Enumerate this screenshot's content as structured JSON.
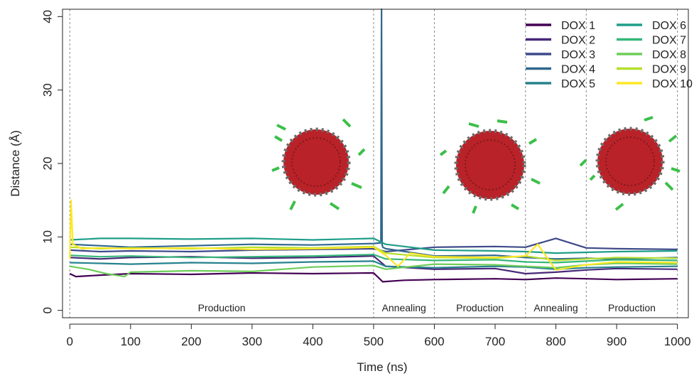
{
  "chart_data": {
    "type": "line",
    "xlabel": "Time (ns)",
    "ylabel": "Distance (Å)",
    "xlim": [
      -12,
      1018
    ],
    "ylim": [
      -1,
      41
    ],
    "xticks": [
      0,
      100,
      200,
      300,
      400,
      500,
      600,
      700,
      800,
      900,
      1000
    ],
    "yticks": [
      0,
      10,
      20,
      30,
      40
    ],
    "vlines": [
      0,
      500,
      600,
      750,
      850,
      1000
    ],
    "regions": [
      {
        "label": "Production",
        "x": [
          0,
          500
        ]
      },
      {
        "label": "Annealing",
        "x": [
          500,
          600
        ]
      },
      {
        "label": "Production",
        "x": [
          600,
          750
        ]
      },
      {
        "label": "Annealing",
        "x": [
          750,
          850
        ]
      },
      {
        "label": "Production",
        "x": [
          850,
          1000
        ]
      }
    ],
    "legend_position": "top-right",
    "series": [
      {
        "name": "DOX 1",
        "color": "#440154",
        "x": [
          0,
          10,
          50,
          100,
          200,
          300,
          400,
          500,
          515,
          550,
          600,
          700,
          750,
          800,
          850,
          900,
          1000
        ],
        "values": [
          5.0,
          4.6,
          4.8,
          5.0,
          4.9,
          5.1,
          5.0,
          5.1,
          3.9,
          4.1,
          4.2,
          4.3,
          4.2,
          4.4,
          4.3,
          4.2,
          4.3
        ]
      },
      {
        "name": "DOX 2",
        "color": "#482878",
        "x": [
          0,
          50,
          100,
          200,
          300,
          400,
          500,
          520,
          600,
          700,
          750,
          800,
          850,
          900,
          1000
        ],
        "values": [
          7.2,
          7.0,
          7.2,
          7.3,
          7.1,
          7.2,
          7.4,
          6.0,
          5.6,
          5.7,
          5.0,
          5.2,
          5.5,
          5.7,
          5.6
        ]
      },
      {
        "name": "DOX 3",
        "color": "#3E4A89",
        "x": [
          0,
          50,
          100,
          200,
          300,
          400,
          500,
          520,
          600,
          700,
          750,
          800,
          850,
          900,
          1000
        ],
        "values": [
          8.2,
          8.0,
          8.1,
          8.0,
          8.2,
          8.3,
          8.4,
          8.0,
          8.6,
          8.7,
          8.6,
          9.8,
          8.5,
          8.4,
          8.3
        ]
      },
      {
        "name": "DOX 4",
        "color": "#31688E",
        "x": [
          0,
          50,
          100,
          200,
          300,
          400,
          500,
          512,
          513,
          514,
          515,
          520,
          600,
          700,
          750,
          800,
          850,
          900,
          1000
        ],
        "values": [
          9.0,
          8.8,
          8.6,
          8.8,
          9.0,
          8.9,
          9.1,
          9.2,
          41.0,
          9.0,
          8.6,
          8.4,
          7.4,
          7.5,
          7.2,
          7.0,
          7.1,
          7.0,
          7.2
        ]
      },
      {
        "name": "DOX 5",
        "color": "#26828E",
        "x": [
          0,
          50,
          100,
          200,
          300,
          400,
          500,
          520,
          600,
          700,
          750,
          800,
          850,
          900,
          1000
        ],
        "values": [
          6.5,
          6.4,
          6.3,
          6.5,
          6.4,
          6.6,
          6.7,
          6.0,
          5.8,
          6.0,
          5.9,
          5.6,
          5.8,
          5.9,
          6.0
        ]
      },
      {
        "name": "DOX 6",
        "color": "#1F9E89",
        "x": [
          0,
          50,
          100,
          200,
          300,
          400,
          500,
          520,
          600,
          700,
          750,
          800,
          850,
          900,
          1000
        ],
        "values": [
          9.6,
          9.8,
          9.8,
          9.7,
          9.8,
          9.6,
          9.8,
          9.0,
          8.2,
          8.1,
          8.0,
          7.8,
          7.9,
          8.0,
          8.1
        ]
      },
      {
        "name": "DOX 7",
        "color": "#35B779",
        "x": [
          0,
          50,
          100,
          200,
          300,
          400,
          500,
          520,
          600,
          700,
          750,
          800,
          850,
          900,
          1000
        ],
        "values": [
          7.5,
          7.3,
          7.4,
          7.2,
          7.3,
          7.4,
          7.6,
          7.0,
          6.8,
          6.9,
          6.6,
          6.5,
          6.7,
          6.9,
          6.8
        ]
      },
      {
        "name": "DOX 8",
        "color": "#6DCD59",
        "x": [
          0,
          30,
          60,
          90,
          100,
          200,
          300,
          350,
          400,
          500,
          520,
          600,
          700,
          750,
          800,
          850,
          900,
          1000
        ],
        "values": [
          6.0,
          5.6,
          5.0,
          4.6,
          5.2,
          5.4,
          5.3,
          5.6,
          5.9,
          6.1,
          5.6,
          6.3,
          6.2,
          6.0,
          5.8,
          6.2,
          6.4,
          6.3
        ]
      },
      {
        "name": "DOX 9",
        "color": "#B4DE2C",
        "x": [
          0,
          50,
          100,
          200,
          300,
          400,
          500,
          520,
          600,
          700,
          750,
          800,
          850,
          900,
          1000
        ],
        "values": [
          8.6,
          8.4,
          8.5,
          8.4,
          8.6,
          8.5,
          8.7,
          7.8,
          7.2,
          7.1,
          7.4,
          6.8,
          7.0,
          7.2,
          7.1
        ]
      },
      {
        "name": "DOX 10",
        "color": "#FDE725",
        "x": [
          0,
          2,
          5,
          20,
          50,
          100,
          200,
          300,
          400,
          500,
          520,
          540,
          560,
          600,
          700,
          750,
          770,
          800,
          850,
          900,
          1000
        ],
        "values": [
          7.0,
          15.0,
          9.0,
          8.4,
          8.5,
          8.4,
          8.5,
          8.3,
          8.4,
          8.6,
          7.5,
          6.0,
          7.8,
          7.3,
          7.2,
          7.4,
          9.0,
          5.5,
          6.2,
          6.6,
          6.5
        ]
      }
    ]
  }
}
